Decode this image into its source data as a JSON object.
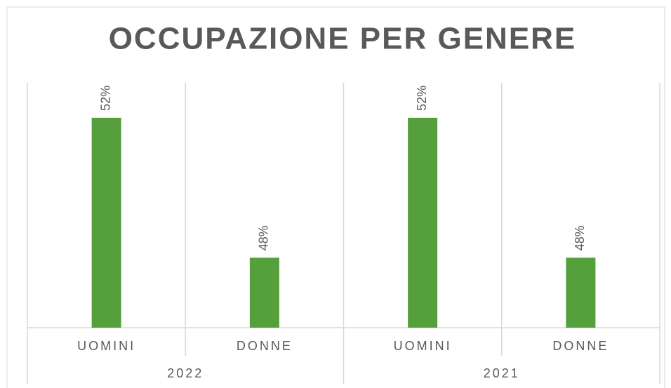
{
  "chart_data": {
    "type": "bar",
    "title": "OCCUPAZIONE PER GENERE",
    "categories": [
      "UOMINI",
      "DONNE",
      "UOMINI",
      "DONNE"
    ],
    "groups": [
      "2022",
      "2021"
    ],
    "values": [
      52,
      48,
      52,
      48
    ],
    "value_labels": [
      "52%",
      "48%",
      "52%",
      "48%"
    ],
    "color": "#55a03c",
    "ylim": [
      46,
      53
    ]
  }
}
